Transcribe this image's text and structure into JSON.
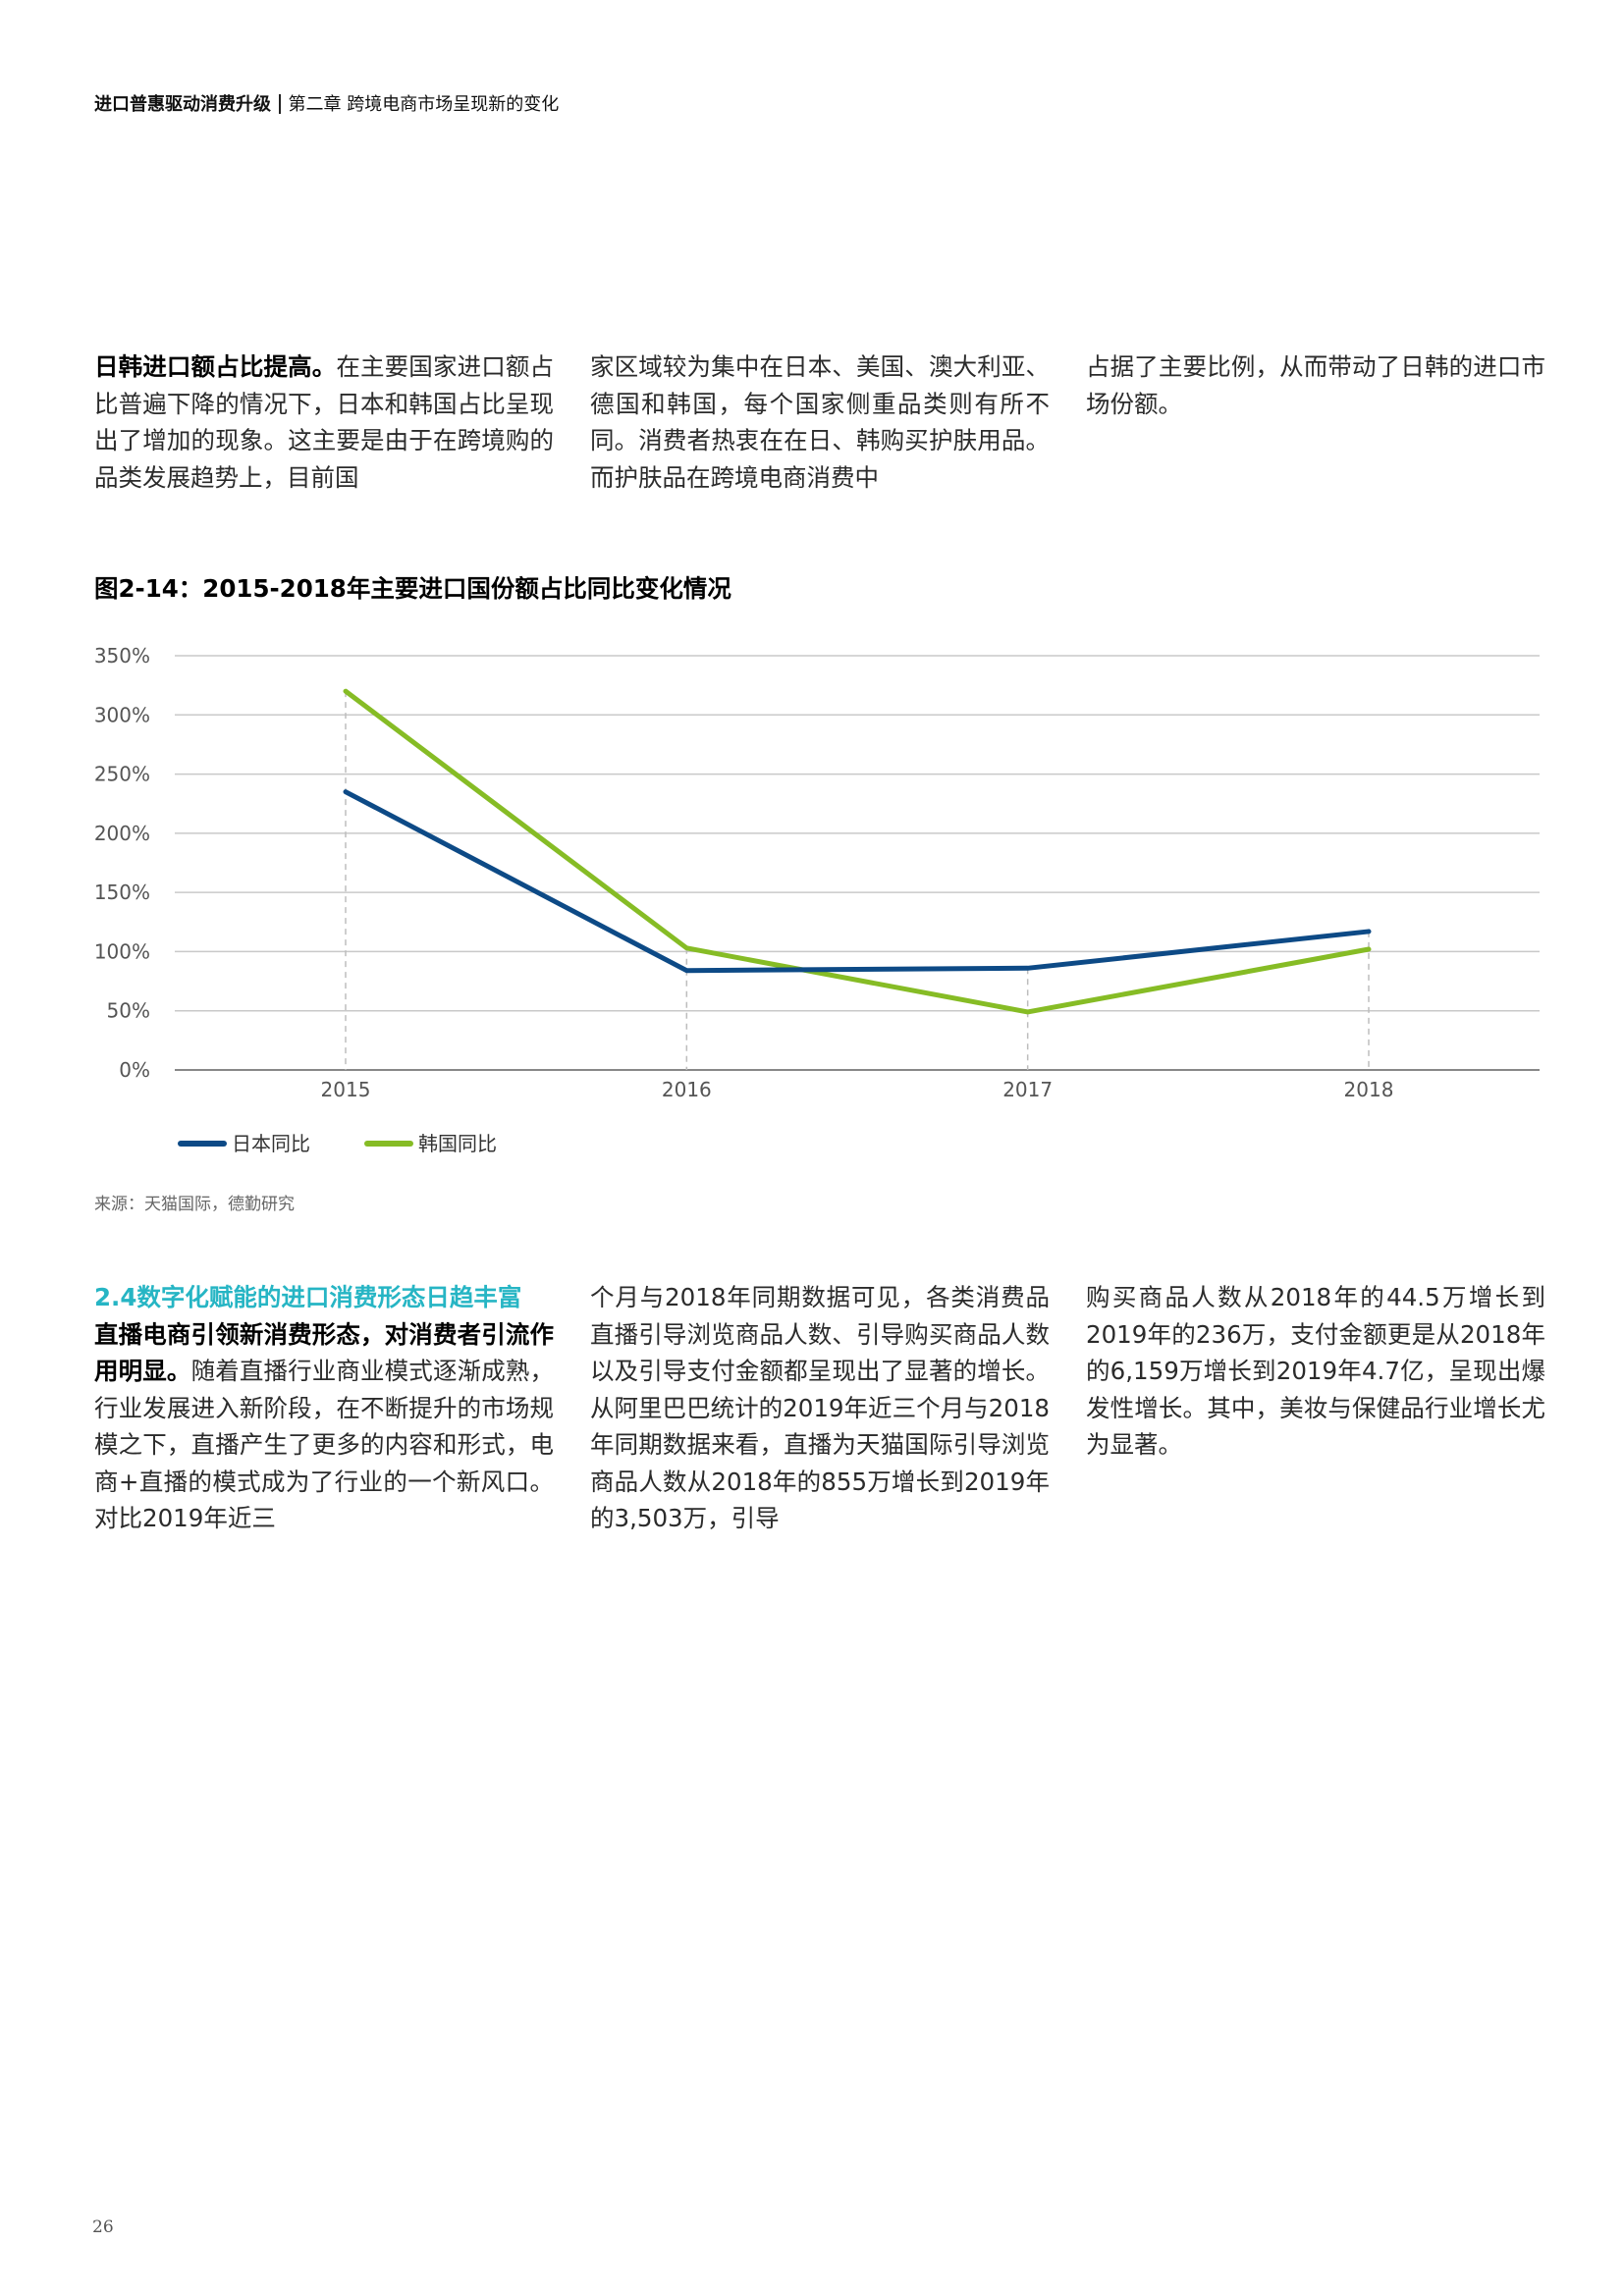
{
  "header": {
    "report_title": "进口普惠驱动消费升级",
    "chapter": "第二章 跨境电商市场呈现新的变化"
  },
  "top_text": {
    "col1_lead": "日韩进口额占比提高。",
    "col1_rest": "在主要国家进口额占比普遍下降的情况下，日本和韩国占比呈现出了增加的现象。这主要是由于在跨境购的品类发展趋势上，目前国",
    "col2": "家区域较为集中在日本、美国、澳大利亚、德国和韩国，每个国家侧重品类则有所不同。消费者热衷在在日、韩购买护肤用品。而护肤品在跨境电商消费中",
    "col3": "占据了主要比例，从而带动了日韩的进口市场份额。"
  },
  "figure": {
    "title": "图2-14：2015-2018年主要进口国份额占比同比变化情况",
    "source": "来源：天猫国际，德勤研究"
  },
  "chart_data": {
    "type": "line",
    "title": "图2-14：2015-2018年主要进口国份额占比同比变化情况",
    "categories": [
      "2015",
      "2016",
      "2017",
      "2018"
    ],
    "ylim": [
      0,
      350
    ],
    "yticks": [
      "0%",
      "50%",
      "100%",
      "150%",
      "200%",
      "250%",
      "300%",
      "350%"
    ],
    "series": [
      {
        "name": "日本同比",
        "color": "#0d4a86",
        "values": [
          235,
          84,
          86,
          117
        ]
      },
      {
        "name": "韩国同比",
        "color": "#86bc25",
        "values": [
          320,
          103,
          49,
          102
        ]
      }
    ],
    "grid": true,
    "legend": "bottom-left"
  },
  "bottom_text": {
    "section_heading": "2.4数字化赋能的进口消费形态日趋丰富",
    "col1_lead": "直播电商引领新消费形态，对消费者引流作用明显。",
    "col1_rest": "随着直播行业商业模式逐渐成熟，行业发展进入新阶段，在不断提升的市场规模之下，直播产生了更多的内容和形式，电商+直播的模式成为了行业的一个新风口。对比2019年近三",
    "col2": "个月与2018年同期数据可见，各类消费品直播引导浏览商品人数、引导购买商品人数以及引导支付金额都呈现出了显著的增长。从阿里巴巴统计的2019年近三个月与2018年同期数据来看，直播为天猫国际引导浏览商品人数从2018年的855万增长到2019年的3,503万，引导",
    "col3": "购买商品人数从2018年的44.5万增长到2019年的236万，支付金额更是从2018年的6,159万增长到2019年4.7亿，呈现出爆发性增长。其中，美妆与保健品行业增长尤为显著。"
  },
  "page_number": "26"
}
